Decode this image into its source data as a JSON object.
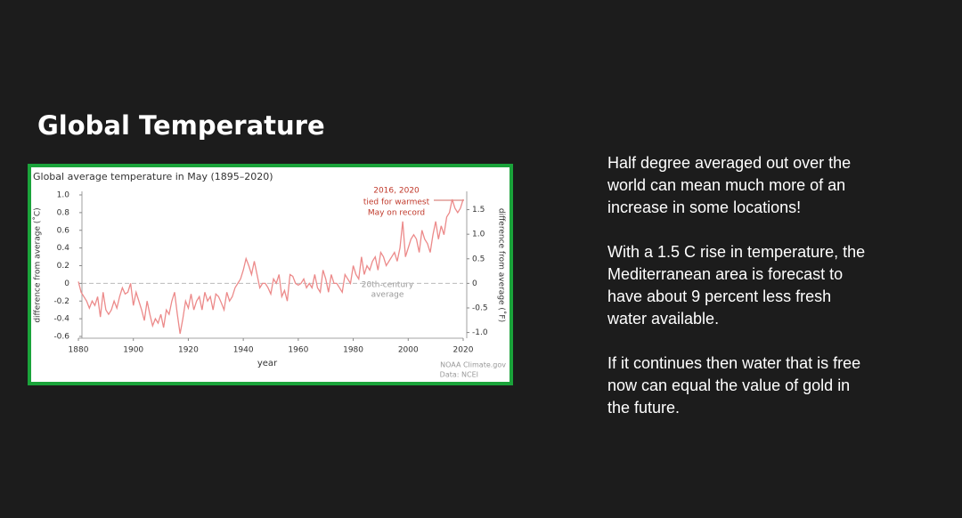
{
  "title": "Global Temperature",
  "paragraphs": [
    [
      "Half degree averaged out over the",
      "world can mean much more of an",
      "increase in some locations!"
    ],
    [
      "With a 1.5 C rise in temperature, the",
      "Mediterranean area is forecast to",
      "have about 9 percent less fresh",
      "water available."
    ],
    [
      "If it continues then water that is free",
      "now can equal the value of gold in",
      "the future."
    ]
  ],
  "chart_data": {
    "type": "line",
    "title": "Global average temperature in May (1895–2020)",
    "x_label": "year",
    "y_label": "difference from average (˚C)",
    "y2_label": "difference from average (˚F)",
    "annotations": [
      "2016, 2020",
      "tied for warmest",
      "May on record",
      "20th-century",
      "average"
    ],
    "source": [
      "NOAA Climate.gov",
      "Data: NCEI"
    ],
    "color": "#ec8a8a",
    "xlim": [
      1880,
      2020
    ],
    "xticks": [
      1880,
      1900,
      1920,
      1940,
      1960,
      1980,
      2000,
      2020
    ],
    "ylim": [
      -0.6,
      1.0
    ],
    "yticks": [
      -0.6,
      -0.4,
      -0.2,
      0,
      0.2,
      0.4,
      0.6,
      0.8,
      {
        "value": 1,
        "label": "1.0"
      }
    ],
    "y2lim": [
      -1.08,
      1.8
    ],
    "y2ticks": [
      {
        "value": -1,
        "label": "-1.0"
      },
      -0.5,
      0,
      0.5,
      {
        "value": 1,
        "label": "1.0"
      },
      1.5
    ],
    "x": [
      1880,
      1881,
      1882,
      1883,
      1884,
      1885,
      1886,
      1887,
      1888,
      1889,
      1890,
      1891,
      1892,
      1893,
      1894,
      1895,
      1896,
      1897,
      1898,
      1899,
      1900,
      1901,
      1902,
      1903,
      1904,
      1905,
      1906,
      1907,
      1908,
      1909,
      1910,
      1911,
      1912,
      1913,
      1914,
      1915,
      1916,
      1917,
      1918,
      1919,
      1920,
      1921,
      1922,
      1923,
      1924,
      1925,
      1926,
      1927,
      1928,
      1929,
      1930,
      1931,
      1932,
      1933,
      1934,
      1935,
      1936,
      1937,
      1938,
      1939,
      1940,
      1941,
      1942,
      1943,
      1944,
      1945,
      1946,
      1947,
      1948,
      1949,
      1950,
      1951,
      1952,
      1953,
      1954,
      1955,
      1956,
      1957,
      1958,
      1959,
      1960,
      1961,
      1962,
      1963,
      1964,
      1965,
      1966,
      1967,
      1968,
      1969,
      1970,
      1971,
      1972,
      1973,
      1974,
      1975,
      1976,
      1977,
      1978,
      1979,
      1980,
      1981,
      1982,
      1983,
      1984,
      1985,
      1986,
      1987,
      1988,
      1989,
      1990,
      1991,
      1992,
      1993,
      1994,
      1995,
      1996,
      1997,
      1998,
      1999,
      2000,
      2001,
      2002,
      2003,
      2004,
      2005,
      2006,
      2007,
      2008,
      2009,
      2010,
      2011,
      2012,
      2013,
      2014,
      2015,
      2016,
      2017,
      2018,
      2019,
      2020
    ],
    "values": [
      0.02,
      -0.1,
      -0.15,
      -0.2,
      -0.28,
      -0.2,
      -0.25,
      -0.15,
      -0.38,
      -0.1,
      -0.3,
      -0.35,
      -0.3,
      -0.2,
      -0.28,
      -0.15,
      -0.05,
      -0.12,
      -0.1,
      0.0,
      -0.25,
      -0.1,
      -0.2,
      -0.3,
      -0.42,
      -0.2,
      -0.35,
      -0.48,
      -0.4,
      -0.45,
      -0.35,
      -0.5,
      -0.3,
      -0.35,
      -0.2,
      -0.1,
      -0.35,
      -0.57,
      -0.4,
      -0.2,
      -0.28,
      -0.12,
      -0.3,
      -0.2,
      -0.15,
      -0.3,
      -0.1,
      -0.2,
      -0.15,
      -0.3,
      -0.12,
      -0.15,
      -0.22,
      -0.3,
      -0.1,
      -0.2,
      -0.15,
      -0.05,
      0.0,
      0.05,
      0.15,
      0.28,
      0.2,
      0.1,
      0.25,
      0.1,
      -0.05,
      0.0,
      0.0,
      -0.05,
      -0.12,
      0.05,
      0.0,
      0.1,
      -0.15,
      -0.08,
      -0.2,
      0.1,
      0.08,
      0.0,
      -0.02,
      0.0,
      0.05,
      -0.05,
      0.0,
      -0.05,
      0.1,
      -0.05,
      -0.1,
      0.15,
      0.05,
      -0.1,
      0.1,
      0.0,
      0.0,
      -0.05,
      -0.1,
      0.1,
      0.05,
      0.0,
      0.2,
      0.1,
      0.05,
      0.3,
      0.1,
      0.2,
      0.15,
      0.25,
      0.3,
      0.15,
      0.35,
      0.3,
      0.2,
      0.25,
      0.3,
      0.35,
      0.25,
      0.4,
      0.7,
      0.3,
      0.4,
      0.5,
      0.55,
      0.5,
      0.35,
      0.6,
      0.5,
      0.45,
      0.35,
      0.55,
      0.7,
      0.5,
      0.65,
      0.55,
      0.75,
      0.8,
      0.95,
      0.85,
      0.8,
      0.85,
      0.95
    ]
  }
}
